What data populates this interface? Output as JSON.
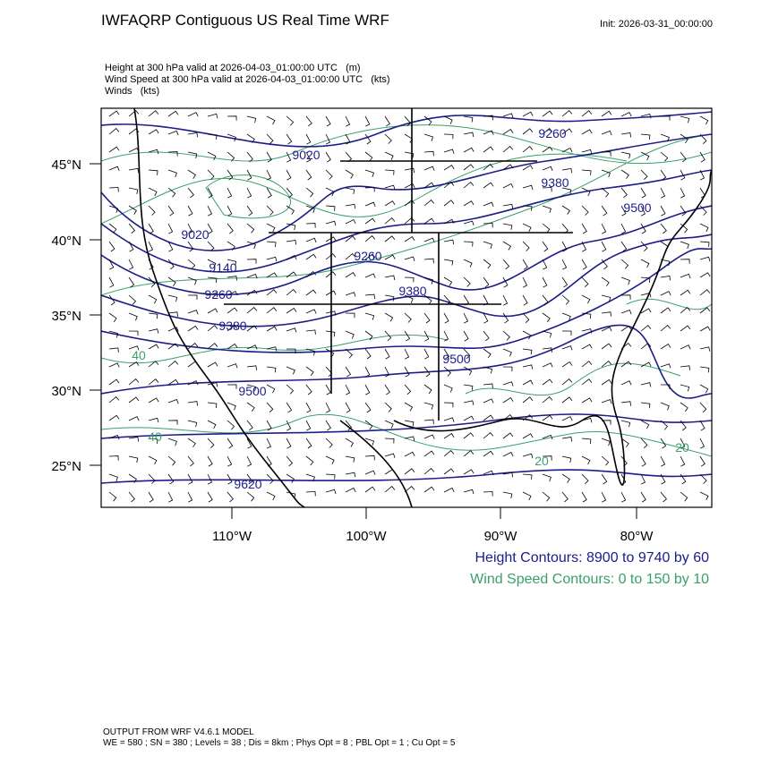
{
  "header": {
    "title": "IWFAQRP Contiguous US Real Time WRF",
    "init": "Init: 2026-03-31_00:00:00",
    "descriptions": [
      "Height at 300 hPa valid at 2026-04-03_01:00:00 UTC   (m)",
      "Wind Speed at 300 hPa valid at 2026-04-03_01:00:00 UTC   (kts)",
      "Winds   (kts)"
    ]
  },
  "map": {
    "lat_labels": [
      "45°N",
      "40°N",
      "35°N",
      "30°N",
      "25°N"
    ],
    "lon_labels": [
      "110°W",
      "100°W",
      "90°W",
      "80°W"
    ],
    "height_contour_labels": [
      "9020",
      "9260",
      "9380",
      "9500",
      "9020",
      "9140",
      "9260",
      "9380",
      "9260",
      "9380",
      "9500",
      "9500",
      "9620"
    ],
    "wind_contour_labels": [
      "20",
      "20",
      "40",
      "40"
    ]
  },
  "legend": {
    "height": "Height Contours: 8900 to 9740 by 60",
    "wind": "Wind Speed Contours: 0 to 150 by 10"
  },
  "footer": {
    "line1": "OUTPUT FROM WRF V4.6.1 MODEL",
    "line2": "WE = 580 ; SN = 380 ; Levels = 38 ; Dis = 8km ; Phys Opt = 8 ; PBL Opt = 1 ; Cu Opt = 5"
  }
}
